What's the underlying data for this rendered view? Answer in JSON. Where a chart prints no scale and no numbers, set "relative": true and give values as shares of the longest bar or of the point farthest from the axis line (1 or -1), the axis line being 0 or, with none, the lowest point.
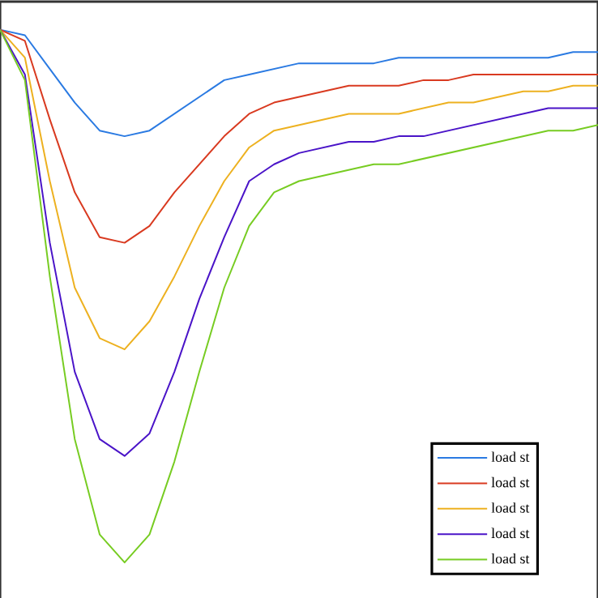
{
  "chart_data": {
    "type": "line",
    "relative": true,
    "categories": [
      null,
      null,
      null,
      null,
      null,
      null,
      null,
      null,
      null,
      null,
      null,
      null,
      null,
      null,
      null,
      null,
      null,
      null,
      null,
      null,
      null,
      null,
      null,
      null,
      null
    ],
    "series": [
      {
        "name": "load st",
        "color": "#2a7ae2",
        "values": [
          -0.05,
          -0.06,
          -0.12,
          -0.18,
          -0.23,
          -0.24,
          -0.23,
          -0.2,
          -0.17,
          -0.14,
          -0.13,
          -0.12,
          -0.11,
          -0.11,
          -0.11,
          -0.11,
          -0.1,
          -0.1,
          -0.1,
          -0.1,
          -0.1,
          -0.1,
          -0.1,
          -0.09,
          -0.09
        ]
      },
      {
        "name": "load st",
        "color": "#d93a20",
        "values": [
          -0.05,
          -0.07,
          -0.21,
          -0.34,
          -0.42,
          -0.43,
          -0.4,
          -0.34,
          -0.29,
          -0.24,
          -0.2,
          -0.18,
          -0.17,
          -0.16,
          -0.15,
          -0.15,
          -0.15,
          -0.14,
          -0.14,
          -0.13,
          -0.13,
          -0.13,
          -0.13,
          -0.13,
          -0.13
        ]
      },
      {
        "name": "load st",
        "color": "#edb120",
        "values": [
          -0.05,
          -0.1,
          -0.32,
          -0.51,
          -0.6,
          -0.62,
          -0.57,
          -0.49,
          -0.4,
          -0.32,
          -0.26,
          -0.23,
          -0.22,
          -0.21,
          -0.2,
          -0.2,
          -0.2,
          -0.19,
          -0.18,
          -0.18,
          -0.17,
          -0.16,
          -0.16,
          -0.15,
          -0.15
        ]
      },
      {
        "name": "load st",
        "color": "#4a14c8",
        "values": [
          -0.05,
          -0.13,
          -0.43,
          -0.66,
          -0.78,
          -0.81,
          -0.77,
          -0.66,
          -0.53,
          -0.42,
          -0.32,
          -0.29,
          -0.27,
          -0.26,
          -0.25,
          -0.25,
          -0.24,
          -0.24,
          -0.23,
          -0.22,
          -0.21,
          -0.2,
          -0.19,
          -0.19,
          -0.19
        ]
      },
      {
        "name": "load st",
        "color": "#77cc22",
        "values": [
          -0.05,
          -0.14,
          -0.49,
          -0.78,
          -0.95,
          -1,
          -0.95,
          -0.82,
          -0.66,
          -0.51,
          -0.4,
          -0.34,
          -0.32,
          -0.31,
          -0.3,
          -0.29,
          -0.29,
          -0.28,
          -0.27,
          -0.26,
          -0.25,
          -0.24,
          -0.23,
          -0.23,
          -0.22
        ]
      }
    ],
    "legend": "bottom right",
    "marker": "none",
    "line_style": "solid"
  }
}
